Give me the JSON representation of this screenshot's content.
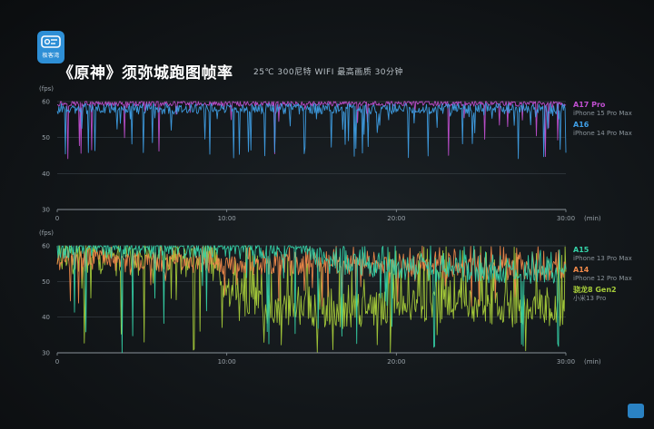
{
  "header": {
    "logo_text": "极客湾",
    "title": "《原神》须弥城跑图帧率",
    "subtitle": "25℃ 300尼特 WIFI 最高画质 30分钟"
  },
  "colors": {
    "a17": "#c04fd0",
    "a16": "#3f9fe6",
    "a15": "#35d3a9",
    "a14": "#f0894a",
    "sd8g2": "#a6cc3a"
  },
  "chart_data": [
    {
      "type": "line",
      "ylabel": "(fps)",
      "xlabel": "(min)",
      "ylim": [
        30,
        60
      ],
      "yticks": [
        30,
        40,
        50,
        60
      ],
      "xlim": [
        0,
        30
      ],
      "xticks": [
        "0",
        "10:00",
        "20:00",
        "30:00"
      ],
      "series": [
        {
          "name": "A17 Pro",
          "device": "iPhone 15 Pro Max",
          "color": "#c04fd0",
          "baseline": 59.5,
          "dip_rate": 0.05,
          "dip_min": 44,
          "noise": 1.6
        },
        {
          "name": "A16",
          "device": "iPhone 14 Pro Max",
          "color": "#3f9fe6",
          "baseline": 58.0,
          "dip_rate": 0.12,
          "dip_min": 44,
          "noise": 3.0
        }
      ]
    },
    {
      "type": "line",
      "ylabel": "(fps)",
      "xlabel": "(min)",
      "ylim": [
        30,
        60
      ],
      "yticks": [
        30,
        40,
        50,
        60
      ],
      "xlim": [
        0,
        30
      ],
      "xticks": [
        "0",
        "10:00",
        "20:00",
        "30:00"
      ],
      "series": [
        {
          "name": "骁龙8 Gen2",
          "device": "小米13 Pro",
          "color": "#a6cc3a",
          "profile": [
            [
              0,
              57
            ],
            [
              9,
              56
            ],
            [
              10,
              48
            ],
            [
              12,
              43
            ],
            [
              16,
              42
            ],
            [
              22,
              43
            ],
            [
              30,
              42
            ]
          ],
          "noise": 5,
          "dip_min": 30
        },
        {
          "name": "A14",
          "device": "iPhone 12 Pro Max",
          "color": "#f0894a",
          "profile": [
            [
              0,
              56
            ],
            [
              10,
              55
            ],
            [
              20,
              54
            ],
            [
              30,
              53
            ]
          ],
          "noise": 3,
          "dip_min": 43
        },
        {
          "name": "A15",
          "device": "iPhone 13 Pro Max",
          "color": "#35d3a9",
          "profile": [
            [
              0,
              59.5
            ],
            [
              15,
              59
            ],
            [
              16,
              55
            ],
            [
              22,
              53
            ],
            [
              30,
              52
            ]
          ],
          "noise": 3,
          "dip_min": 30
        }
      ]
    }
  ]
}
